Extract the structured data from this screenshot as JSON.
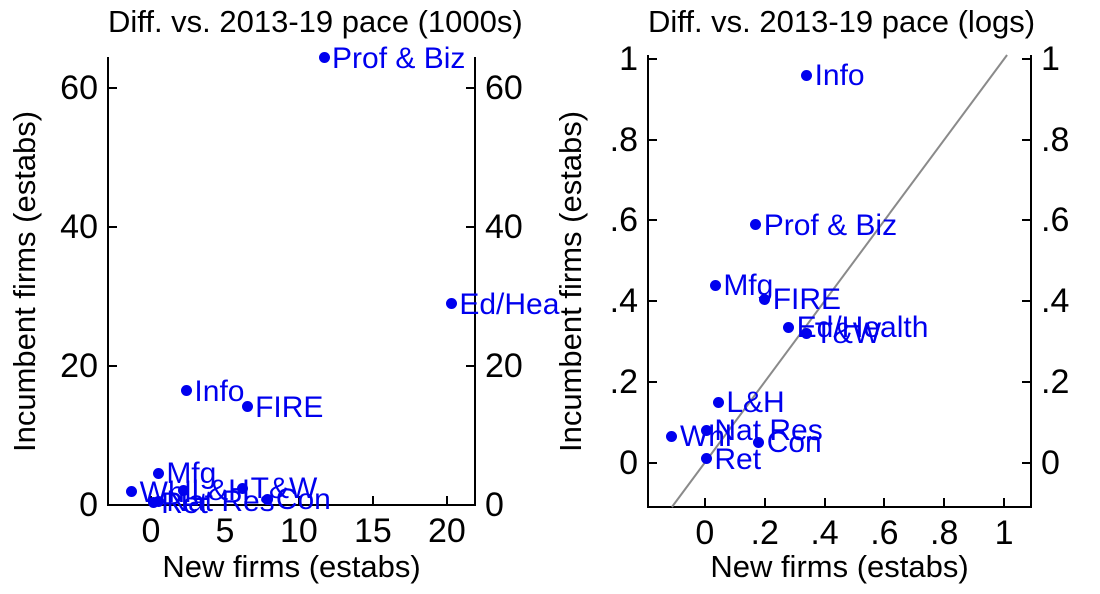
{
  "figure": {
    "background": "#ffffff",
    "point_color": "#0000ee",
    "label_color": "#0000ee",
    "axis_color": "#000000",
    "refline_color": "#8a8a8a"
  },
  "chart_data": [
    {
      "type": "scatter",
      "title": "Diff. vs. 2013-19 pace (1000s)",
      "xlabel": "New firms (estabs)",
      "ylabel": "Incumbent firms (estabs)",
      "xlim": [
        -2.9,
        21.9
      ],
      "ylim": [
        0,
        64.4
      ],
      "grid": false,
      "legend": "none",
      "y_ticks_both_sides": true,
      "x_ticks": [
        {
          "label": "0",
          "value": 0
        },
        {
          "label": "5",
          "value": 5
        },
        {
          "label": "10",
          "value": 10
        },
        {
          "label": "15",
          "value": 15
        },
        {
          "label": "20",
          "value": 20
        }
      ],
      "y_ticks": [
        {
          "label": "0",
          "value": 0
        },
        {
          "label": "20",
          "value": 20
        },
        {
          "label": "40",
          "value": 40
        },
        {
          "label": "60",
          "value": 60
        }
      ],
      "points": [
        {
          "label": "Prof & Biz",
          "x": 11.7,
          "y": 64.3
        },
        {
          "label": "Ed/Hea",
          "x": 20.3,
          "y": 28.9
        },
        {
          "label": "Info",
          "x": 2.4,
          "y": 16.4
        },
        {
          "label": "FIRE",
          "x": 6.5,
          "y": 14.1
        },
        {
          "label": "Mfg",
          "x": 0.5,
          "y": 4.6
        },
        {
          "label": "T&W",
          "x": 6.2,
          "y": 2.4
        },
        {
          "label": "L&H",
          "x": 2.2,
          "y": 2.1
        },
        {
          "label": "Whl",
          "x": -1.3,
          "y": 1.9
        },
        {
          "label": "Con",
          "x": 7.9,
          "y": 0.8
        },
        {
          "label": "Nat Res",
          "x": 0.5,
          "y": 0.55
        },
        {
          "label": "Ret",
          "x": 0.15,
          "y": 0.35
        }
      ],
      "ref_line": null
    },
    {
      "type": "scatter",
      "title": "Diff. vs. 2013-19 pace (logs)",
      "xlabel": "New firms (estabs)",
      "ylabel": "Incumbent firms (estabs)",
      "xlim": [
        -0.19,
        1.09
      ],
      "ylim": [
        -0.11,
        1.01
      ],
      "grid": false,
      "legend": "none",
      "y_ticks_both_sides": true,
      "x_ticks": [
        {
          "label": "0",
          "value": 0
        },
        {
          "label": ".2",
          "value": 0.2
        },
        {
          "label": ".4",
          "value": 0.4
        },
        {
          "label": ".6",
          "value": 0.6
        },
        {
          "label": ".8",
          "value": 0.8
        },
        {
          "label": "1",
          "value": 1
        }
      ],
      "y_ticks": [
        {
          "label": "0",
          "value": 0
        },
        {
          "label": ".2",
          "value": 0.2
        },
        {
          "label": ".4",
          "value": 0.4
        },
        {
          "label": ".6",
          "value": 0.6
        },
        {
          "label": ".8",
          "value": 0.8
        },
        {
          "label": "1",
          "value": 1
        }
      ],
      "points": [
        {
          "label": "Info",
          "x": 0.34,
          "y": 0.96
        },
        {
          "label": "Prof & Biz",
          "x": 0.17,
          "y": 0.59
        },
        {
          "label": "Mfg",
          "x": 0.035,
          "y": 0.44
        },
        {
          "label": "FIRE",
          "x": 0.2,
          "y": 0.405
        },
        {
          "label": "Ed/Health",
          "x": 0.28,
          "y": 0.335
        },
        {
          "label": "T&W",
          "x": 0.34,
          "y": 0.32
        },
        {
          "label": "L&H",
          "x": 0.045,
          "y": 0.15
        },
        {
          "label": "Nat Res",
          "x": 0.005,
          "y": 0.08
        },
        {
          "label": "Whl",
          "x": -0.11,
          "y": 0.065
        },
        {
          "label": "Con",
          "x": 0.18,
          "y": 0.05
        },
        {
          "label": "Ret",
          "x": 0.005,
          "y": 0.01
        }
      ],
      "ref_line": {
        "slope": 1,
        "intercept": 0,
        "description": "45-degree line"
      }
    }
  ]
}
